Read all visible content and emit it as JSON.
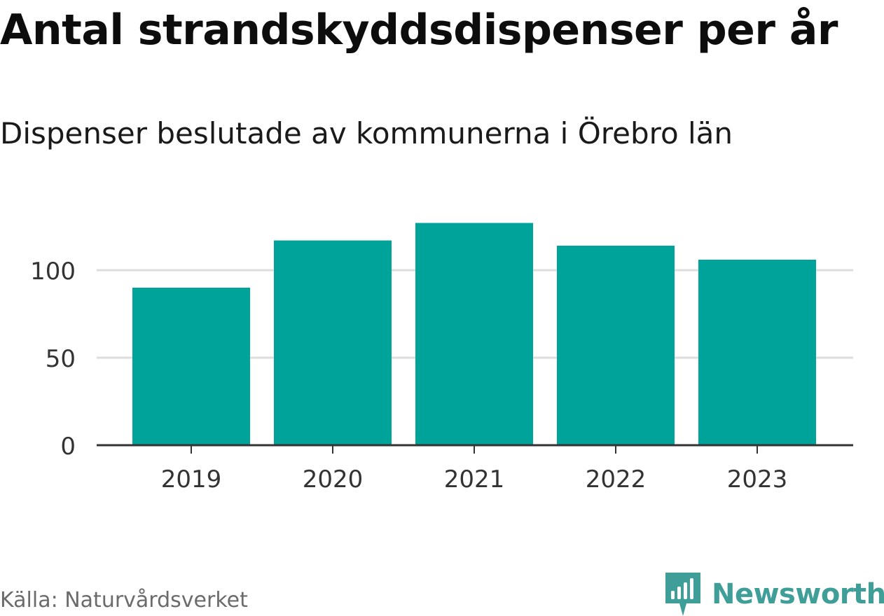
{
  "title": "Antal strandskyddsdispenser per år",
  "subtitle": "Dispenser beslutade av kommunerna i Örebro län",
  "source": "Källa: Naturvårdsverket",
  "brand": {
    "name": "Newsworthy",
    "icon": "newsworthy-logo-icon",
    "color": "#3f9e97"
  },
  "colors": {
    "bar": "#00a399",
    "grid": "#dddddd",
    "axis": "#333333",
    "tick_label": "#333333"
  },
  "chart_data": {
    "type": "bar",
    "title": "Antal strandskyddsdispenser per år",
    "subtitle": "Dispenser beslutade av kommunerna i Örebro län",
    "xlabel": "",
    "ylabel": "",
    "categories": [
      "2019",
      "2020",
      "2021",
      "2022",
      "2023"
    ],
    "values": [
      90,
      117,
      127,
      114,
      106
    ],
    "ylim": [
      0,
      130
    ],
    "yticks": [
      0,
      50,
      100
    ],
    "ytick_labels": [
      "0",
      "50",
      "100"
    ],
    "grid": true,
    "legend": "none"
  }
}
